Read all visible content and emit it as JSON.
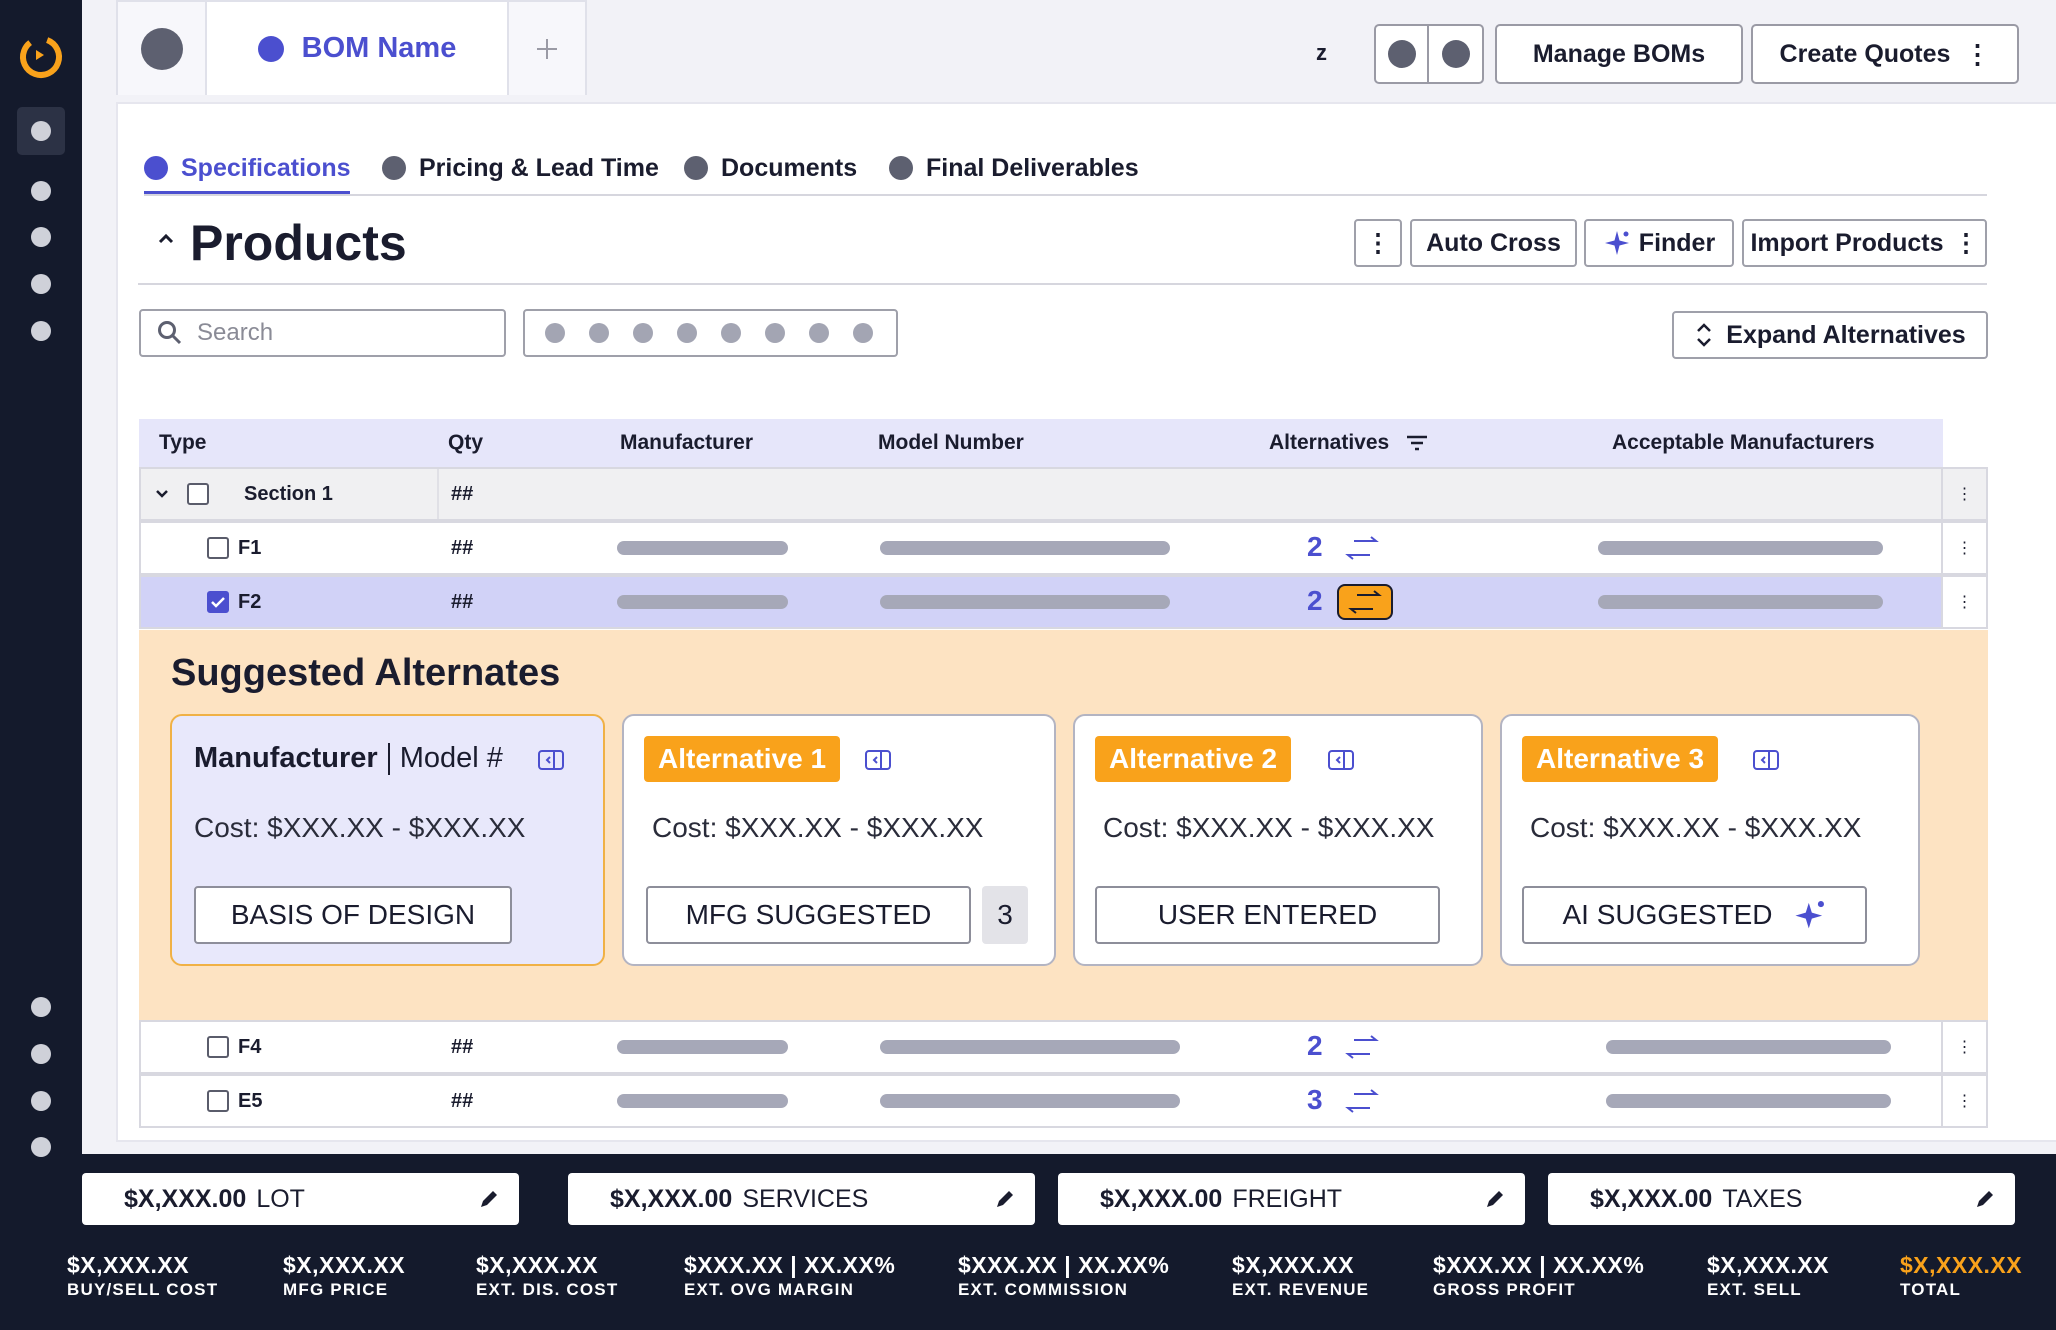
{
  "window": {
    "bom_tab_label": "BOM Name",
    "z_label": "z"
  },
  "header": {
    "manage_label": "Manage BOMs",
    "create_quotes_label": "Create Quotes"
  },
  "subtabs": [
    {
      "label": "Specifications",
      "active": true
    },
    {
      "label": "Pricing & Lead Time"
    },
    {
      "label": "Documents"
    },
    {
      "label": "Final Deliverables"
    }
  ],
  "products": {
    "title": "Products",
    "auto_cross_label": "Auto Cross",
    "finder_label": "Finder",
    "import_label": "Import Products",
    "search_placeholder": "Search",
    "expand_label": "Expand Alternatives"
  },
  "table": {
    "columns": [
      "Type",
      "Qty",
      "Manufacturer",
      "Model Number",
      "Alternatives",
      "Acceptable Manufacturers"
    ],
    "section": {
      "label": "Section 1",
      "qty": "##"
    },
    "rows": [
      {
        "type": "F1",
        "qty": "##",
        "alternatives": "2",
        "checked": false
      },
      {
        "type": "F2",
        "qty": "##",
        "alternatives": "2",
        "checked": true
      },
      {
        "type": "F4",
        "qty": "##",
        "alternatives": "2",
        "checked": false
      },
      {
        "type": "E5",
        "qty": "##",
        "alternatives": "3",
        "checked": false
      }
    ]
  },
  "suggested": {
    "title": "Suggested Alternates",
    "base": {
      "manufacturer": "Manufacturer",
      "model": "Model #",
      "cost": "Cost: $XXX.XX - $XXX.XX",
      "tag": "BASIS OF DESIGN"
    },
    "alternatives": [
      {
        "label": "Alternative 1",
        "cost": "Cost: $XXX.XX - $XXX.XX",
        "tag": "MFG SUGGESTED",
        "count": "3"
      },
      {
        "label": "Alternative 2",
        "cost": "Cost: $XXX.XX - $XXX.XX",
        "tag": "USER ENTERED"
      },
      {
        "label": "Alternative 3",
        "cost": "Cost: $XXX.XX - $XXX.XX",
        "tag": "AI SUGGESTED"
      }
    ]
  },
  "footer": {
    "boxes": [
      {
        "value": "$X,XXX.00",
        "label": "LOT"
      },
      {
        "value": "$X,XXX.00",
        "label": "SERVICES"
      },
      {
        "value": "$X,XXX.00",
        "label": "FREIGHT"
      },
      {
        "value": "$X,XXX.00",
        "label": "TAXES"
      }
    ],
    "stats": [
      {
        "value": "$X,XXX.XX",
        "label": "BUY/SELL COST"
      },
      {
        "value": "$X,XXX.XX",
        "label": "MFG PRICE"
      },
      {
        "value": "$X,XXX.XX",
        "label": "EXT. DIS. COST"
      },
      {
        "value": "$XXX.XX | XX.XX%",
        "label": "EXT. OVG MARGIN"
      },
      {
        "value": "$XXX.XX | XX.XX%",
        "label": "EXT. COMMISSION"
      },
      {
        "value": "$X,XXX.XX",
        "label": "EXT. REVENUE"
      },
      {
        "value": "$XXX.XX | XX.XX%",
        "label": "GROSS PROFIT"
      },
      {
        "value": "$X,XXX.XX",
        "label": "EXT. SELL"
      },
      {
        "value": "$X,XXX.XX",
        "label": "TOTAL"
      }
    ]
  },
  "colors": {
    "accent": "#4b4fcf",
    "brand": "#f9a21b",
    "sidebar": "#141a2c",
    "highlight_row": "#d1d2f7",
    "suggest_bg": "#fde3c2"
  }
}
